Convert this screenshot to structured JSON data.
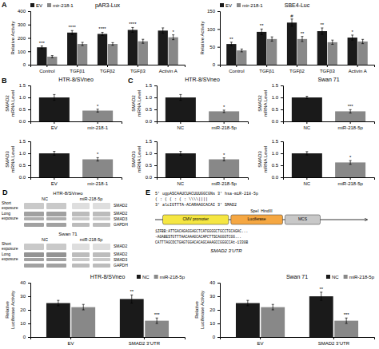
{
  "chart_data": [
    {
      "type": "bar",
      "title": "pAR3-Lux",
      "ylabel": "Relative Activity",
      "categories": [
        "Control",
        "TGFβ1",
        "TGFβ2",
        "TGFβ3",
        "Activin A"
      ],
      "series": [
        {
          "name": "EV",
          "color": "#1a1a1a",
          "values": [
            130,
            240,
            230,
            260,
            255
          ],
          "errors": [
            10,
            15,
            12,
            18,
            20
          ]
        },
        {
          "name": "mir-218-1",
          "color": "#888888",
          "values": [
            60,
            155,
            155,
            175,
            205
          ],
          "errors": [
            8,
            12,
            10,
            15,
            18
          ]
        }
      ],
      "ylim": [
        0,
        400
      ],
      "yticks": [
        0,
        100,
        200,
        300,
        400
      ],
      "legend": "upper left",
      "annotations": [
        {
          "text": "A"
        },
        {
          "text": "***",
          "series": 0,
          "category": 0
        },
        {
          "text": "****",
          "series": 0,
          "category": 1
        },
        {
          "text": "****",
          "series": 0,
          "category": 2
        },
        {
          "text": "****",
          "series": 0,
          "category": 3
        },
        {
          "text": "*",
          "series": 1,
          "category": 4
        }
      ]
    },
    {
      "type": "bar",
      "title": "SBE4-Luc",
      "ylabel": "Relative Activity",
      "categories": [
        "Control",
        "TGFβ1",
        "TGFβ2",
        "TGFβ3",
        "Activin A"
      ],
      "series": [
        {
          "name": "EV",
          "color": "#1a1a1a",
          "values": [
            58,
            92,
            118,
            94,
            76
          ],
          "errors": [
            5,
            8,
            10,
            9,
            7
          ]
        },
        {
          "name": "mir-218-1",
          "color": "#888888",
          "values": [
            40,
            72,
            72,
            63,
            65
          ],
          "errors": [
            4,
            6,
            7,
            6,
            6
          ]
        }
      ],
      "ylim": [
        0,
        150
      ],
      "yticks": [
        0,
        50,
        100,
        150
      ],
      "legend": "upper left",
      "annotations": [
        {
          "text": "**",
          "series": 0,
          "category": 0
        },
        {
          "text": "**",
          "series": 0,
          "category": 1
        },
        {
          "text": "#",
          "series": 0,
          "category": 2
        },
        {
          "text": "**",
          "series": 0,
          "category": 3
        },
        {
          "text": "*",
          "series": 0,
          "category": 4
        },
        {
          "text": "**",
          "series": 1,
          "category": 2
        }
      ]
    },
    {
      "type": "bar",
      "title": "HTR-8/SVneo",
      "ylabel": "SMAD2 mRNA Level",
      "categories": [
        "EV",
        "mir-218-1"
      ],
      "values": [
        1.0,
        0.45
      ],
      "errors": [
        0.12,
        0.06
      ],
      "colors": [
        "#1a1a1a",
        "#888888"
      ],
      "ylim": [
        0,
        1.5
      ],
      "yticks": [
        {
          "value": 0,
          "label": "0.0"
        },
        0.5,
        {
          "value": 1.0,
          "label": "1.0"
        },
        1.5
      ],
      "annotations": [
        {
          "text": "B"
        },
        {
          "text": "*",
          "category": 1
        }
      ]
    },
    {
      "type": "bar",
      "ylabel": "SMAD3 mRNA Level",
      "categories": [
        "EV",
        "mir-218-1"
      ],
      "values": [
        1.0,
        0.75
      ],
      "errors": [
        0.08,
        0.07
      ],
      "colors": [
        "#1a1a1a",
        "#888888"
      ],
      "ylim": [
        0,
        1.5
      ],
      "yticks": [
        {
          "value": 0,
          "label": "0.0"
        },
        0.5,
        {
          "value": 1.0,
          "label": "1.0"
        },
        1.5
      ],
      "annotations": [
        {
          "text": "*",
          "category": 1
        }
      ]
    },
    {
      "type": "bar",
      "title": "HTR-8/SVneo",
      "ylabel": "SMAD2 mRNA Level",
      "categories": [
        "NC",
        "miR-218-5p"
      ],
      "values": [
        1.0,
        0.42
      ],
      "errors": [
        0.12,
        0.05
      ],
      "colors": [
        "#1a1a1a",
        "#888888"
      ],
      "ylim": [
        0,
        1.5
      ],
      "yticks": [
        {
          "value": 0,
          "label": "0.0"
        },
        0.5,
        {
          "value": 1.0,
          "label": "1.0"
        },
        1.5
      ],
      "annotations": [
        {
          "text": "C"
        },
        {
          "text": "*",
          "category": 1
        }
      ]
    },
    {
      "type": "bar",
      "ylabel": "SMAD3 mRNA Level",
      "categories": [
        "NC",
        "miR-218-5p"
      ],
      "values": [
        1.0,
        0.75
      ],
      "errors": [
        0.08,
        0.06
      ],
      "colors": [
        "#1a1a1a",
        "#888888"
      ],
      "ylim": [
        0,
        1.5
      ],
      "yticks": [
        {
          "value": 0,
          "label": "0.0"
        },
        0.5,
        {
          "value": 1.0,
          "label": "1.0"
        },
        1.5
      ],
      "annotations": [
        {
          "text": "*",
          "category": 1
        }
      ]
    },
    {
      "type": "bar",
      "title": "Swan 71",
      "ylabel": "SMAD2 mRNA Level",
      "categories": [
        "NC",
        "miR-218-5p"
      ],
      "values": [
        1.0,
        0.42
      ],
      "errors": [
        0.05,
        0.07
      ],
      "colors": [
        "#1a1a1a",
        "#888888"
      ],
      "ylim": [
        0,
        1.5
      ],
      "yticks": [
        {
          "value": 0,
          "label": "0.0"
        },
        0.5,
        {
          "value": 1.0,
          "label": "1.0"
        },
        1.5
      ],
      "annotations": [
        {
          "text": "***",
          "category": 1
        }
      ]
    },
    {
      "type": "bar",
      "ylabel": "SMAD3 mRNA Level",
      "categories": [
        "NC",
        "miR-218-5p"
      ],
      "values": [
        1.0,
        0.62
      ],
      "errors": [
        0.07,
        0.08
      ],
      "colors": [
        "#1a1a1a",
        "#888888"
      ],
      "ylim": [
        0,
        1.5
      ],
      "yticks": [
        {
          "value": 0,
          "label": "0.0"
        },
        0.5,
        {
          "value": 1.0,
          "label": "1.0"
        },
        1.5
      ],
      "annotations": [
        {
          "text": "*",
          "category": 1
        }
      ]
    },
    {
      "type": "blot",
      "annotations": [
        {
          "text": "D"
        },
        {
          "text": "HTR-8/SVneo"
        },
        {
          "text": "NC"
        },
        {
          "text": "miR-218-5p"
        },
        {
          "text": "SMAD2"
        },
        {
          "text": "Short\nexposure"
        },
        {
          "text": "SMAD2"
        },
        {
          "text": "SMAD3"
        },
        {
          "text": "Long\nexposure"
        },
        {
          "text": "GAPDH"
        },
        {
          "text": "Swan 71"
        },
        {
          "text": "NC"
        },
        {
          "text": "miR-218-5p"
        },
        {
          "text": "SMAD2"
        },
        {
          "text": "Short\nexposure"
        },
        {
          "text": "SMAD2"
        },
        {
          "text": "SMAD3"
        },
        {
          "text": "Long\nexposure"
        },
        {
          "text": "GAPDH"
        }
      ]
    },
    {
      "type": "diagram",
      "annotations": [
        {
          "text": "E"
        },
        {
          "text": "5' ugpASCAAUCUACUUUGGCGNs 3' hsa-miR-218-5p"
        },
        {
          "text": "( : ( ( : ( : \\\\\\\\||||"
        },
        {
          "text": "3' alcIGTTTA-ACARAAGCACAI 3' SMAD2"
        },
        {
          "text": "SpeI  HindIII"
        },
        {
          "text": "CMV promoter",
          "color": "#f5e642"
        },
        {
          "text": "Luciferase",
          "color": "#f5a742"
        },
        {
          "text": "MCS",
          "color": "#c8c8c8"
        },
        {
          "text": "1ZFBB:ATTGACAGAGGAGCTCATGGGGCTGCCTGCAGAC..."
        },
        {
          "text": "-AGABESTGTTTAACAAAGCACAPCTTSCAGGGTCGG..."
        },
        {
          "text": "CATTTAGCOCTGAGTGGACACAGCAAAGCCGGGCCAt-1330B"
        },
        {
          "text": "SMAD2 3’UTR"
        }
      ]
    },
    {
      "type": "bar",
      "title": "HTR-8/SVneo",
      "ylabel": "Relative Luciferase Activity",
      "categories": [
        "EV",
        "SMAD2 3’UTR"
      ],
      "series": [
        {
          "name": "NC",
          "color": "#1a1a1a",
          "values": [
            25,
            28
          ],
          "errors": [
            2,
            3
          ]
        },
        {
          "name": "miR-218-5p",
          "color": "#888888",
          "values": [
            22,
            12
          ],
          "errors": [
            2,
            2
          ]
        }
      ],
      "ylim": [
        0,
        40
      ],
      "yticks": [
        0,
        10,
        20,
        30,
        40
      ],
      "legend": "upper right",
      "annotations": [
        {
          "text": "**",
          "series": 0,
          "category": 1
        },
        {
          "text": "***",
          "series": 1,
          "category": 1
        }
      ]
    },
    {
      "type": "bar",
      "title": "Swan 71",
      "ylabel": "Relative Luciferase Activity",
      "categories": [
        "EV",
        "SMAD2 3’UTR"
      ],
      "series": [
        {
          "name": "NC",
          "color": "#1a1a1a",
          "values": [
            25,
            30
          ],
          "errors": [
            2,
            3
          ]
        },
        {
          "name": "miR-218-5p",
          "color": "#888888",
          "values": [
            22,
            12
          ],
          "errors": [
            2,
            2
          ]
        }
      ],
      "ylim": [
        0,
        40
      ],
      "yticks": [
        0,
        10,
        20,
        30,
        40
      ],
      "legend": "upper right",
      "annotations": [
        {
          "text": "**",
          "series": 0,
          "category": 1
        },
        {
          "text": "***",
          "series": 1,
          "category": 1
        }
      ]
    }
  ]
}
